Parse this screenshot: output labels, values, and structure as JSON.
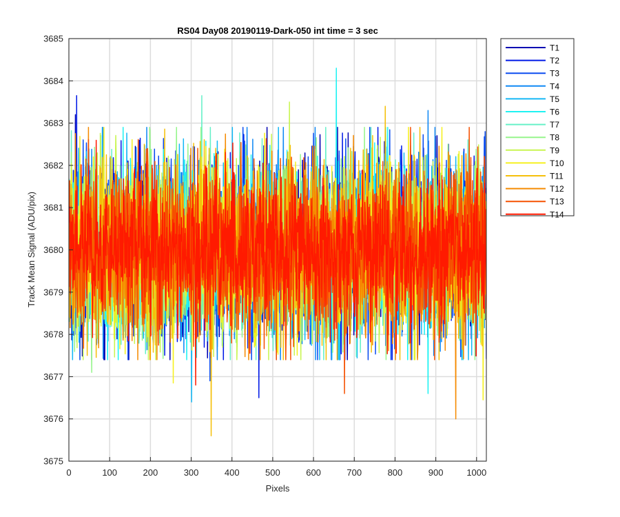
{
  "chart_data": {
    "type": "line",
    "title": "RS04 Day08 20190119-Dark-050 int time = 3 sec",
    "xlabel": "Pixels",
    "ylabel": "Track Mean Signal (ADU/pix)",
    "xlim": [
      0,
      1024
    ],
    "ylim": [
      3675,
      3685
    ],
    "xticks": [
      "0",
      "100",
      "200",
      "300",
      "400",
      "500",
      "600",
      "700",
      "800",
      "900",
      "1000"
    ],
    "yticks": [
      "3675",
      "3676",
      "3677",
      "3678",
      "3679",
      "3680",
      "3681",
      "3682",
      "3683",
      "3684",
      "3685"
    ],
    "grid": true,
    "legend_location": "outside-top-right",
    "n_points": 1024,
    "series": [
      {
        "name": "T1",
        "color": "#0000b2",
        "mean": 3680.0,
        "std": 1.0,
        "extremes": [
          [
            15,
            3683.2
          ]
        ]
      },
      {
        "name": "T2",
        "color": "#0019e6",
        "mean": 3680.0,
        "std": 1.0,
        "extremes": [
          [
            18,
            3683.65
          ],
          [
            465,
            3676.5
          ]
        ]
      },
      {
        "name": "T3",
        "color": "#0a4cf0",
        "mean": 3680.0,
        "std": 1.0,
        "extremes": [
          [
            345,
            3676.9
          ],
          [
            1020,
            3682.8
          ]
        ]
      },
      {
        "name": "T4",
        "color": "#0f88f5",
        "mean": 3680.0,
        "std": 1.0,
        "extremes": [
          [
            880,
            3683.3
          ]
        ]
      },
      {
        "name": "T5",
        "color": "#14b8f5",
        "mean": 3680.0,
        "std": 1.0,
        "extremes": [
          [
            300,
            3676.4
          ]
        ]
      },
      {
        "name": "T6",
        "color": "#1ef2f2",
        "mean": 3680.0,
        "std": 1.0,
        "extremes": [
          [
            655,
            3684.3
          ],
          [
            880,
            3676.6
          ]
        ]
      },
      {
        "name": "T7",
        "color": "#66f0c8",
        "mean": 3680.0,
        "std": 1.0,
        "extremes": [
          [
            325,
            3683.65
          ]
        ]
      },
      {
        "name": "T8",
        "color": "#96f58c",
        "mean": 3680.0,
        "std": 1.0,
        "extremes": [
          [
            55,
            3677.1
          ]
        ]
      },
      {
        "name": "T9",
        "color": "#c8f550",
        "mean": 3680.0,
        "std": 1.0,
        "extremes": [
          [
            540,
            3683.5
          ]
        ]
      },
      {
        "name": "T10",
        "color": "#f5f01e",
        "mean": 3680.0,
        "std": 1.0,
        "extremes": [
          [
            1015,
            3676.45
          ],
          [
            255,
            3676.85
          ]
        ]
      },
      {
        "name": "T11",
        "color": "#f5c00a",
        "mean": 3680.0,
        "std": 1.0,
        "extremes": [
          [
            348,
            3675.6
          ],
          [
            775,
            3683.4
          ]
        ]
      },
      {
        "name": "T12",
        "color": "#f58a00",
        "mean": 3680.0,
        "std": 1.0,
        "extremes": [
          [
            948,
            3676.0
          ]
        ]
      },
      {
        "name": "T13",
        "color": "#f55000",
        "mean": 3680.0,
        "std": 1.0,
        "extremes": [
          [
            675,
            3676.6
          ]
        ]
      },
      {
        "name": "T14",
        "color": "#ff1a00",
        "mean": 3680.0,
        "std": 0.85,
        "extremes": [
          [
            310,
            3676.8
          ]
        ]
      }
    ]
  }
}
